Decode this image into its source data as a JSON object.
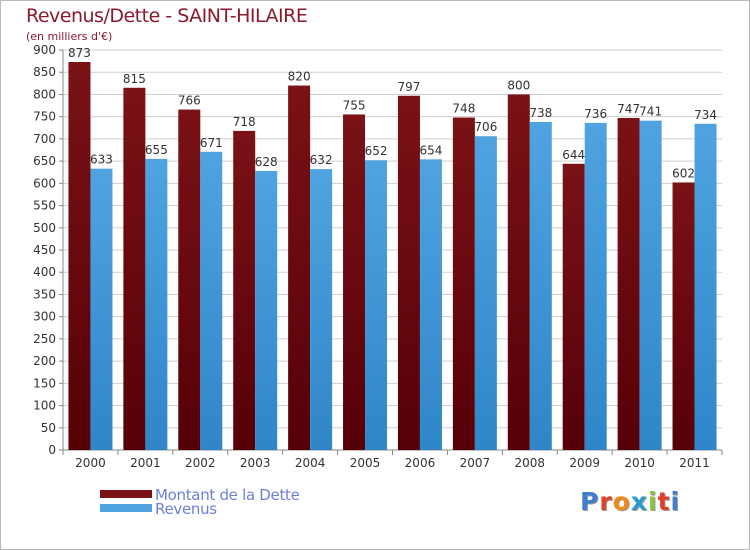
{
  "header": {
    "title": "Revenus/Dette - SAINT-HILAIRE",
    "subtitle": "(en milliers d'€)"
  },
  "legend": {
    "items": [
      {
        "label": "Montant de la Dette",
        "color": "#7a1216"
      },
      {
        "label": "Revenus",
        "color": "#4fa3e0"
      }
    ]
  },
  "brand": {
    "text": "Proxiti",
    "letter_colors": [
      "#3f7fd0",
      "#e0402a",
      "#f08a1a",
      "#2a9ad0",
      "#8ac43a",
      "#e0402a",
      "#3f7fd0"
    ]
  },
  "colors": {
    "debt": "#7a1216",
    "revenue": "#4fa3e0",
    "grid": "#cfcfcf",
    "axis_text": "#333333",
    "label_text": "#333333",
    "title": "#8b1a2b"
  },
  "chart_data": {
    "type": "bar",
    "categories": [
      "2000",
      "2001",
      "2002",
      "2003",
      "2004",
      "2005",
      "2006",
      "2007",
      "2008",
      "2009",
      "2010",
      "2011"
    ],
    "series": [
      {
        "name": "Montant de la Dette",
        "values": [
          873,
          815,
          766,
          718,
          820,
          755,
          797,
          748,
          800,
          644,
          747,
          602
        ]
      },
      {
        "name": "Revenus",
        "values": [
          633,
          655,
          671,
          628,
          632,
          652,
          654,
          706,
          738,
          736,
          741,
          734
        ]
      }
    ],
    "title": "Revenus/Dette - SAINT-HILAIRE",
    "subtitle": "(en milliers d'€)",
    "ylim": [
      0,
      900
    ],
    "ytick_step": 50,
    "grid": true,
    "legend_position": "bottom-left"
  }
}
